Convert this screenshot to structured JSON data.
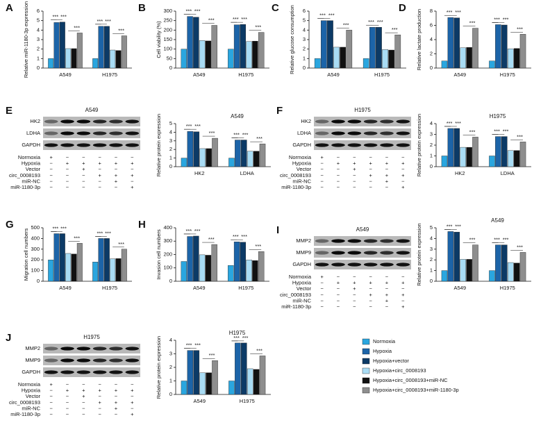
{
  "legend": [
    {
      "name": "Normoxia",
      "color": "#2aa6df"
    },
    {
      "name": "Hypoxia",
      "color": "#1c64a8"
    },
    {
      "name": "Hypoxia+vector",
      "color": "#0c3a66"
    },
    {
      "name": "Hypoxia+circ_0008193",
      "color": "#a9dcf4"
    },
    {
      "name": "Hypoxia+circ_0008193+miR-NC",
      "color": "#111111"
    },
    {
      "name": "Hypoxia+circ_0008193+miR-1180-3p",
      "color": "#8e8e8e"
    }
  ],
  "blots": [
    {
      "panel": "E",
      "title": "A549",
      "bands": [
        "HK2",
        "LDHA",
        "GAPDH"
      ],
      "rows": [
        {
          "label": "Normoxia",
          "signs": [
            "+",
            "−",
            "−",
            "−",
            "−",
            "−"
          ]
        },
        {
          "label": "Hypoxia",
          "signs": [
            "−",
            "+",
            "+",
            "+",
            "+",
            "+"
          ]
        },
        {
          "label": "Vector",
          "signs": [
            "−",
            "−",
            "+",
            "−",
            "−",
            "−"
          ]
        },
        {
          "label": "circ_0008193",
          "signs": [
            "−",
            "−",
            "−",
            "+",
            "+",
            "+"
          ]
        },
        {
          "label": "miR-NC",
          "signs": [
            "−",
            "−",
            "−",
            "−",
            "+",
            "−"
          ]
        },
        {
          "label": "miR-1180-3p",
          "signs": [
            "−",
            "−",
            "−",
            "−",
            "−",
            "+"
          ]
        }
      ]
    },
    {
      "panel": "F",
      "title": "H1975",
      "bands": [
        "HK2",
        "LDHA",
        "GAPDH"
      ],
      "rows": [
        {
          "label": "Normoxia",
          "signs": [
            "+",
            "−",
            "−",
            "−",
            "−",
            "−"
          ]
        },
        {
          "label": "Hypoxia",
          "signs": [
            "−",
            "+",
            "+",
            "+",
            "+",
            "+"
          ]
        },
        {
          "label": "Vector",
          "signs": [
            "−",
            "−",
            "+",
            "−",
            "−",
            "−"
          ]
        },
        {
          "label": "circ_0008193",
          "signs": [
            "−",
            "−",
            "−",
            "+",
            "+",
            "+"
          ]
        },
        {
          "label": "miR-NC",
          "signs": [
            "−",
            "−",
            "−",
            "−",
            "+",
            "−"
          ]
        },
        {
          "label": "miR-1180-3p",
          "signs": [
            "−",
            "−",
            "−",
            "−",
            "−",
            "+"
          ]
        }
      ]
    },
    {
      "panel": "I",
      "title": "A549",
      "bands": [
        "MMP2",
        "MMP9",
        "GAPDH"
      ],
      "rows": [
        {
          "label": "Normoxia",
          "signs": [
            "+",
            "−",
            "−",
            "−",
            "−",
            "−"
          ]
        },
        {
          "label": "Hypoxia",
          "signs": [
            "−",
            "+",
            "+",
            "+",
            "+",
            "+"
          ]
        },
        {
          "label": "Vector",
          "signs": [
            "−",
            "−",
            "+",
            "−",
            "−",
            "−"
          ]
        },
        {
          "label": "circ_0008193",
          "signs": [
            "−",
            "−",
            "−",
            "+",
            "+",
            "+"
          ]
        },
        {
          "label": "miR-NC",
          "signs": [
            "−",
            "−",
            "−",
            "−",
            "+",
            "−"
          ]
        },
        {
          "label": "miR-1180-3p",
          "signs": [
            "−",
            "−",
            "−",
            "−",
            "−",
            "+"
          ]
        }
      ]
    },
    {
      "panel": "J",
      "title": "H1975",
      "bands": [
        "MMP2",
        "MMP9",
        "GAPDH"
      ],
      "rows": [
        {
          "label": "Normoxia",
          "signs": [
            "+",
            "−",
            "−",
            "−",
            "−",
            "−"
          ]
        },
        {
          "label": "Hypoxia",
          "signs": [
            "−",
            "+",
            "+",
            "+",
            "+",
            "+"
          ]
        },
        {
          "label": "Vector",
          "signs": [
            "−",
            "−",
            "+",
            "−",
            "−",
            "−"
          ]
        },
        {
          "label": "circ_0008193",
          "signs": [
            "−",
            "−",
            "−",
            "+",
            "+",
            "+"
          ]
        },
        {
          "label": "miR-NC",
          "signs": [
            "−",
            "−",
            "−",
            "−",
            "+",
            "−"
          ]
        },
        {
          "label": "miR-1180-3p",
          "signs": [
            "−",
            "−",
            "−",
            "−",
            "−",
            "+"
          ]
        }
      ]
    }
  ],
  "chart_data": [
    {
      "type": "bar",
      "panel": "A",
      "y_label": "Relative miR-1180-3p expression",
      "categories": [
        "A549",
        "H1975"
      ],
      "series": [
        {
          "values": [
            1,
            1
          ]
        },
        {
          "values": [
            4.8,
            4.4
          ]
        },
        {
          "values": [
            4.85,
            4.4
          ]
        },
        {
          "values": [
            2.05,
            1.9
          ]
        },
        {
          "values": [
            2.05,
            1.85
          ]
        },
        {
          "values": [
            3.7,
            3.4
          ]
        }
      ],
      "ylim": [
        0,
        6
      ],
      "yticks": [
        0,
        1,
        2,
        3,
        4,
        5,
        6
      ],
      "significance": [
        "***",
        "***",
        "***",
        "***",
        "***",
        "***"
      ]
    },
    {
      "type": "bar",
      "panel": "B",
      "y_label": "Cell viability (%)",
      "categories": [
        "A549",
        "H1975"
      ],
      "series": [
        {
          "values": [
            100,
            100
          ]
        },
        {
          "values": [
            272,
            228
          ]
        },
        {
          "values": [
            268,
            230
          ]
        },
        {
          "values": [
            145,
            140
          ]
        },
        {
          "values": [
            143,
            142
          ]
        },
        {
          "values": [
            225,
            188
          ]
        }
      ],
      "ylim": [
        0,
        300
      ],
      "yticks": [
        0,
        50,
        100,
        150,
        200,
        250,
        300
      ],
      "significance": [
        "***",
        "***",
        "***",
        "***",
        "***",
        "***"
      ]
    },
    {
      "type": "bar",
      "panel": "C",
      "y_label": "Relative glucose consumption",
      "categories": [
        "A549",
        "H1975"
      ],
      "series": [
        {
          "values": [
            1,
            1
          ]
        },
        {
          "values": [
            5,
            4.3
          ]
        },
        {
          "values": [
            5,
            4.3
          ]
        },
        {
          "values": [
            2.2,
            1.95
          ]
        },
        {
          "values": [
            2.2,
            1.9
          ]
        },
        {
          "values": [
            4,
            3.5
          ]
        }
      ],
      "ylim": [
        0,
        6
      ],
      "yticks": [
        0,
        1,
        2,
        3,
        4,
        5,
        6
      ],
      "significance": [
        "***",
        "***",
        "***",
        "***",
        "***",
        "***"
      ]
    },
    {
      "type": "bar",
      "panel": "D",
      "y_label": "Relative lactate production",
      "categories": [
        "A549",
        "H1975"
      ],
      "series": [
        {
          "values": [
            1,
            1
          ]
        },
        {
          "values": [
            7.1,
            6.1
          ]
        },
        {
          "values": [
            7.05,
            6.05
          ]
        },
        {
          "values": [
            2.85,
            2.7
          ]
        },
        {
          "values": [
            2.9,
            2.75
          ]
        },
        {
          "values": [
            5.6,
            4.75
          ]
        }
      ],
      "ylim": [
        0,
        8
      ],
      "yticks": [
        0,
        2,
        4,
        6,
        8
      ],
      "significance": [
        "***",
        "***",
        "***",
        "***",
        "***",
        "***"
      ]
    },
    {
      "type": "bar",
      "title": "A549",
      "y_label": "Relative protein expression",
      "categories": [
        "HK2",
        "LDHA"
      ],
      "series": [
        {
          "values": [
            1,
            1
          ]
        },
        {
          "values": [
            4.1,
            3.1
          ]
        },
        {
          "values": [
            4.05,
            3.1
          ]
        },
        {
          "values": [
            2.1,
            1.8
          ]
        },
        {
          "values": [
            2.1,
            1.8
          ]
        },
        {
          "values": [
            3.3,
            2.65
          ]
        }
      ],
      "ylim": [
        0,
        5
      ],
      "yticks": [
        0,
        1,
        2,
        3,
        4,
        5
      ],
      "significance": [
        "***",
        "***",
        "***",
        "***",
        "***",
        "***"
      ]
    },
    {
      "type": "bar",
      "title": "H1975",
      "y_label": "Relative protein expression",
      "categories": [
        "HK2",
        "LDHA"
      ],
      "series": [
        {
          "values": [
            1,
            1
          ]
        },
        {
          "values": [
            3.55,
            2.8
          ]
        },
        {
          "values": [
            3.55,
            2.8
          ]
        },
        {
          "values": [
            1.8,
            1.5
          ]
        },
        {
          "values": [
            1.8,
            1.5
          ]
        },
        {
          "values": [
            2.75,
            2.3
          ]
        }
      ],
      "ylim": [
        0,
        4
      ],
      "yticks": [
        0,
        1,
        2,
        3,
        4
      ],
      "significance": [
        "***",
        "***",
        "***",
        "***",
        "***",
        "***"
      ]
    },
    {
      "type": "bar",
      "panel": "G",
      "y_label": "Migration cell numbers",
      "categories": [
        "A549",
        "H1975"
      ],
      "series": [
        {
          "values": [
            200,
            180
          ]
        },
        {
          "values": [
            445,
            400
          ]
        },
        {
          "values": [
            445,
            400
          ]
        },
        {
          "values": [
            260,
            210
          ]
        },
        {
          "values": [
            255,
            212
          ]
        },
        {
          "values": [
            355,
            300
          ]
        }
      ],
      "ylim": [
        0,
        500
      ],
      "yticks": [
        0,
        100,
        200,
        300,
        400,
        500
      ],
      "significance": [
        "***",
        "***",
        "***",
        "***",
        "***",
        "***"
      ]
    },
    {
      "type": "bar",
      "panel": "H",
      "y_label": "Invasion cell numbers",
      "categories": [
        "A549",
        "H1975"
      ],
      "series": [
        {
          "values": [
            148,
            118
          ]
        },
        {
          "values": [
            335,
            295
          ]
        },
        {
          "values": [
            338,
            292
          ]
        },
        {
          "values": [
            198,
            160
          ]
        },
        {
          "values": [
            195,
            155
          ]
        },
        {
          "values": [
            275,
            222
          ]
        }
      ],
      "ylim": [
        0,
        400
      ],
      "yticks": [
        0,
        100,
        200,
        300,
        400
      ],
      "significance": [
        "***",
        "***",
        "***",
        "***",
        "***",
        "***"
      ]
    },
    {
      "type": "bar",
      "title": "A549",
      "y_label": "Relative protein expression",
      "categories": [
        "A549",
        "H1975"
      ],
      "series": [
        {
          "values": [
            1,
            1
          ]
        },
        {
          "values": [
            4.65,
            3.4
          ]
        },
        {
          "values": [
            4.6,
            3.4
          ]
        },
        {
          "values": [
            2.05,
            1.75
          ]
        },
        {
          "values": [
            2.05,
            1.7
          ]
        },
        {
          "values": [
            3.4,
            2.7
          ]
        }
      ],
      "ylim": [
        0,
        5
      ],
      "yticks": [
        0,
        1,
        2,
        3,
        4,
        5
      ],
      "significance": [
        "***",
        "***",
        "***",
        "***",
        "***",
        "***"
      ]
    },
    {
      "type": "bar",
      "title": "H1975",
      "y_label": "Relative protein expression",
      "categories": [
        "A549",
        "H1975"
      ],
      "series": [
        {
          "values": [
            1,
            1
          ]
        },
        {
          "values": [
            3.25,
            3.8
          ]
        },
        {
          "values": [
            3.25,
            3.8
          ]
        },
        {
          "values": [
            1.6,
            1.9
          ]
        },
        {
          "values": [
            1.6,
            1.85
          ]
        },
        {
          "values": [
            2.5,
            2.85
          ]
        }
      ],
      "ylim": [
        0,
        4
      ],
      "yticks": [
        0,
        1,
        2,
        3,
        4
      ],
      "significance": [
        "***",
        "***",
        "***",
        "***",
        "***",
        "***"
      ]
    }
  ]
}
